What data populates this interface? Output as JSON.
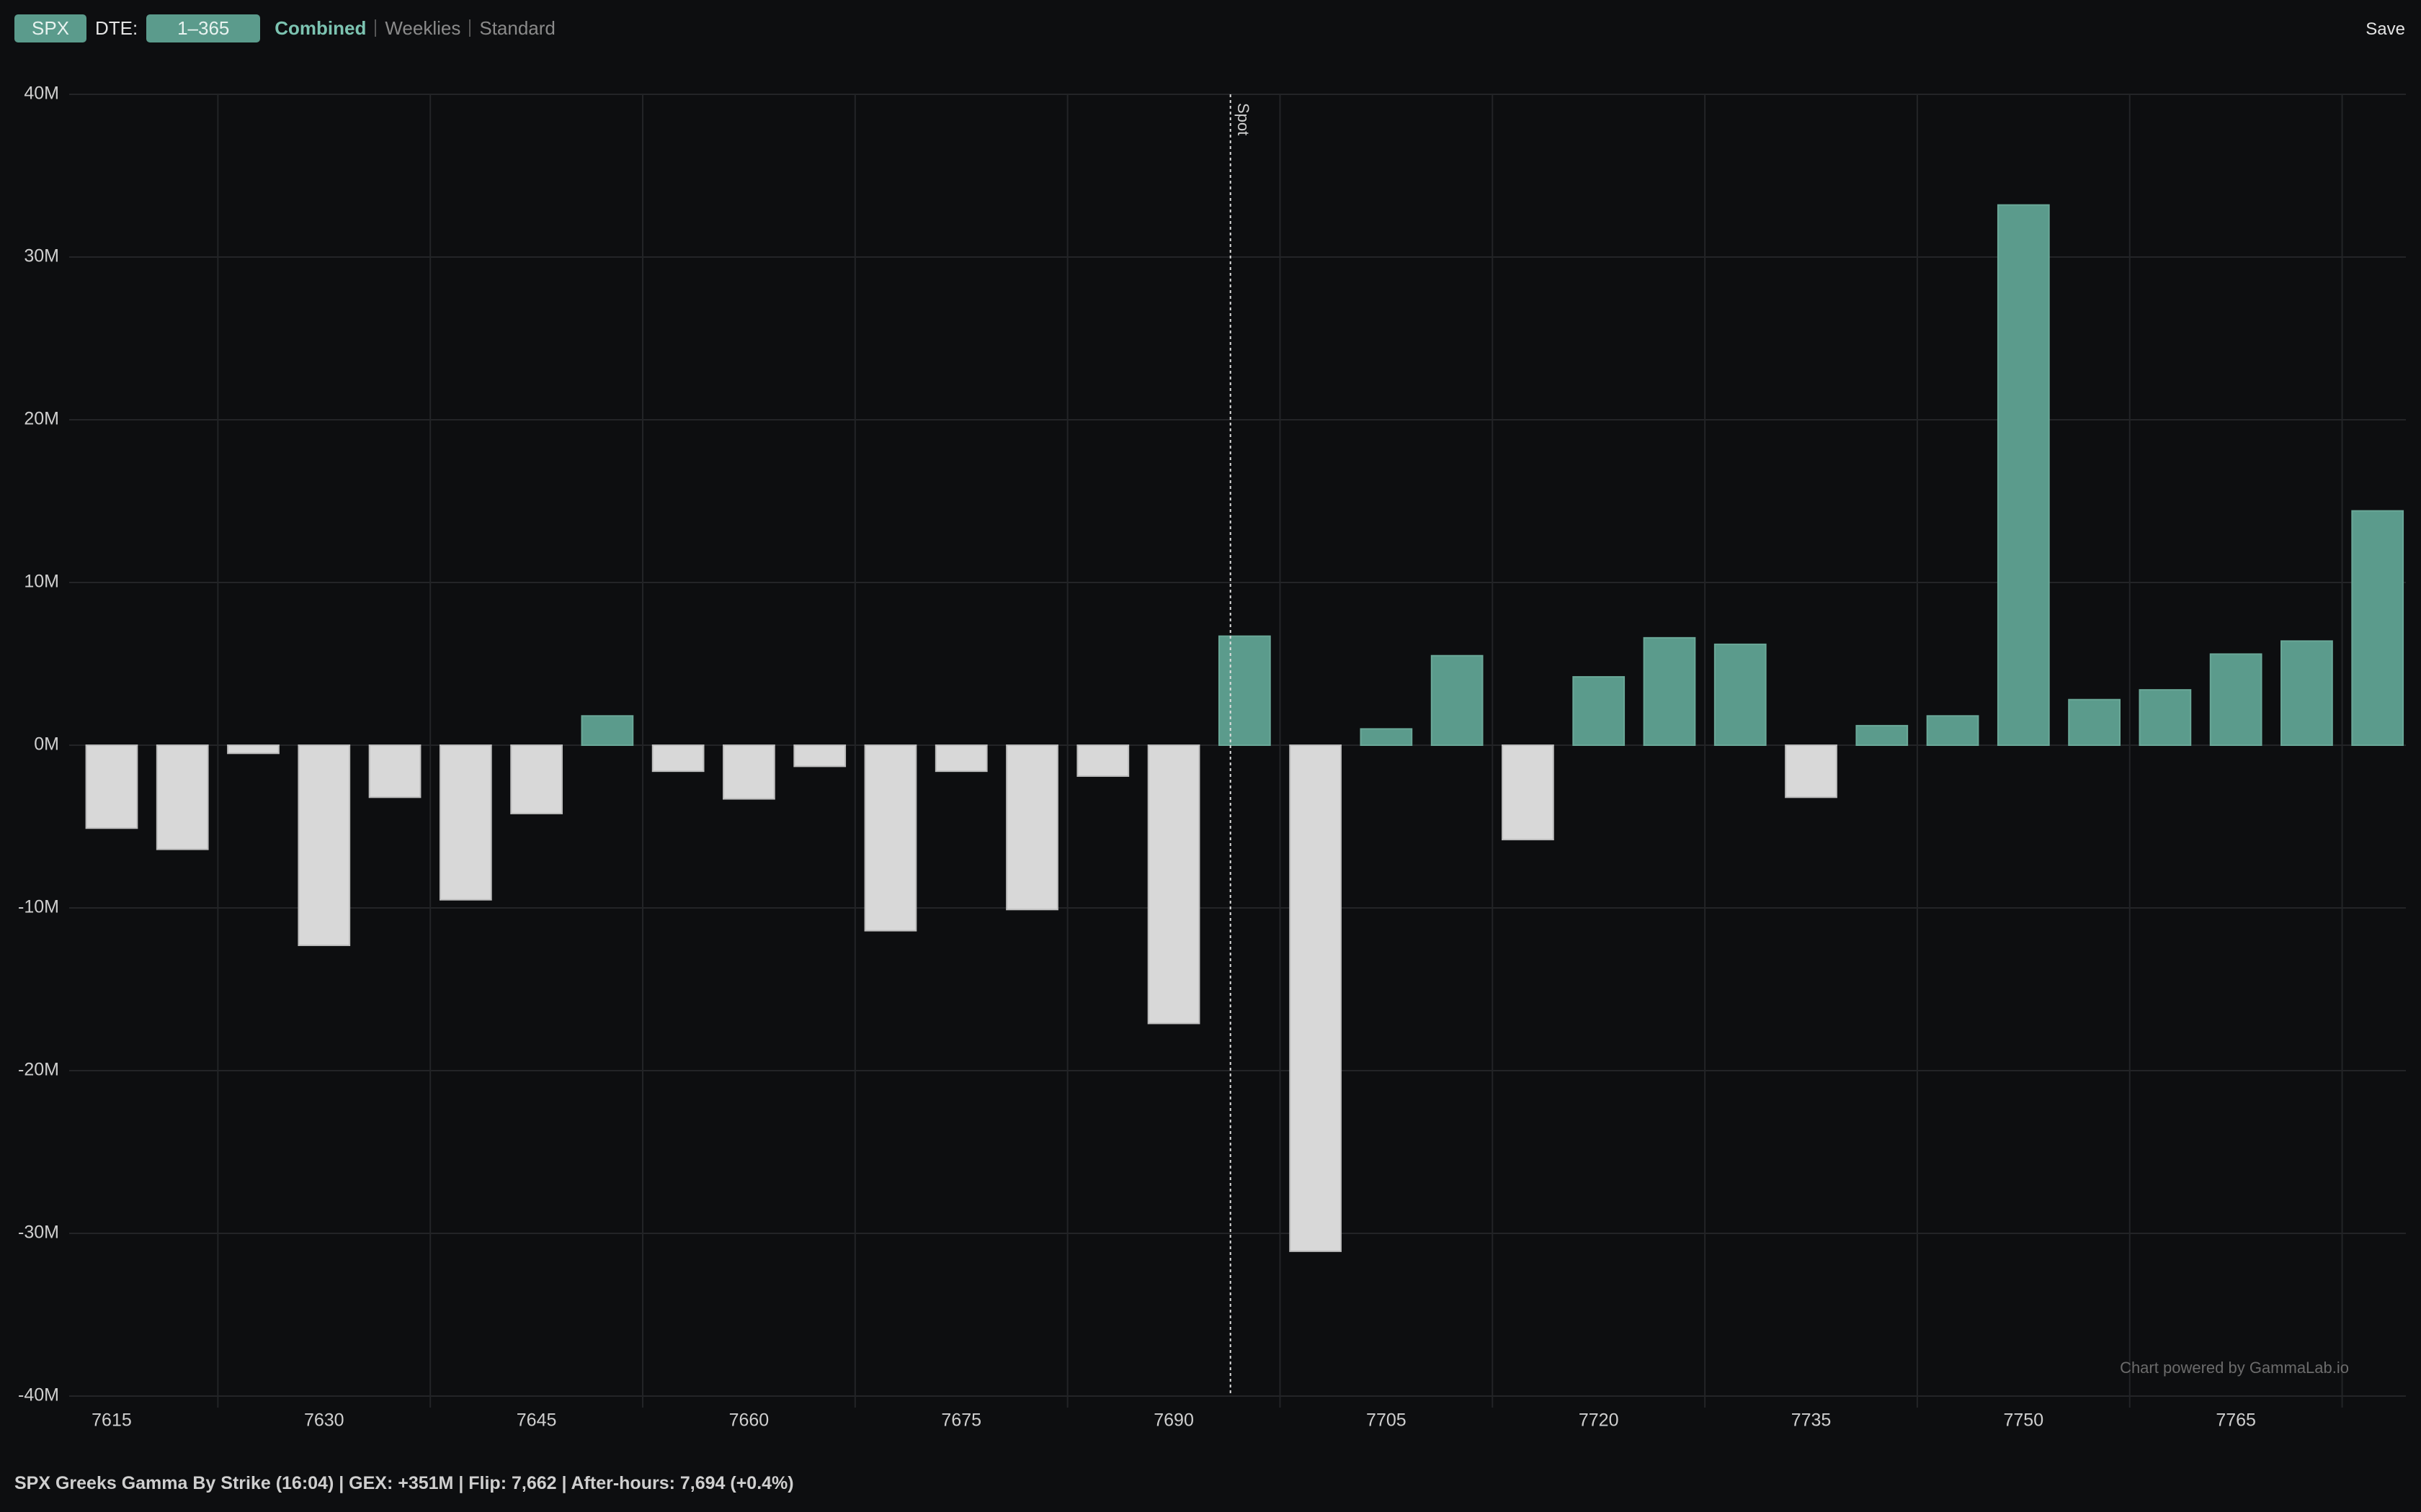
{
  "toolbar": {
    "symbol": "SPX",
    "dte_label": "DTE:",
    "dte_value": "1–365",
    "tabs": [
      "Combined",
      "Weeklies",
      "Standard"
    ],
    "active_tab": 0,
    "save": "Save"
  },
  "chart_data": {
    "type": "bar",
    "x": [
      7615,
      7620,
      7625,
      7630,
      7635,
      7640,
      7645,
      7650,
      7655,
      7660,
      7665,
      7670,
      7675,
      7680,
      7685,
      7690,
      7695,
      7700,
      7705,
      7710,
      7715,
      7720,
      7725,
      7730,
      7735,
      7740,
      7745,
      7750,
      7755,
      7760,
      7765,
      7770,
      7775
    ],
    "values": [
      -5.1,
      -6.4,
      -0.5,
      -12.3,
      -3.2,
      -9.5,
      -4.2,
      1.8,
      -1.6,
      -3.3,
      -1.3,
      -11.4,
      -1.6,
      -10.1,
      -1.9,
      -17.1,
      6.7,
      -31.1,
      1.0,
      5.5,
      -5.8,
      4.2,
      6.6,
      6.2,
      -3.2,
      1.2,
      1.8,
      33.2,
      2.8,
      3.4,
      5.6,
      6.4,
      14.4
    ],
    "positive_color": "#5b9b8c",
    "negative_color": "#d8d8d8",
    "xlim": [
      7612,
      7777
    ],
    "xticks": [
      7615,
      7630,
      7645,
      7660,
      7675,
      7690,
      7705,
      7720,
      7735,
      7750,
      7765
    ],
    "ylim": [
      -40,
      40
    ],
    "yticks": [
      {
        "value": -40,
        "label": "-40M"
      },
      {
        "value": -30,
        "label": "-30M"
      },
      {
        "value": -20,
        "label": "-20M"
      },
      {
        "value": -10,
        "label": "-10M"
      },
      {
        "value": 0,
        "label": "0M"
      },
      {
        "value": 10,
        "label": "10M"
      },
      {
        "value": 20,
        "label": "20M"
      },
      {
        "value": 30,
        "label": "30M"
      },
      {
        "value": 40,
        "label": "40M"
      }
    ],
    "grid": true,
    "spot": {
      "value": 7694,
      "label": "Spot"
    },
    "watermark": "Chart powered by GammaLab.io"
  },
  "footer": "SPX Greeks Gamma By Strike (16:04) | GEX: +351M | Flip: 7,662 | After-hours: 7,694 (+0.4%)"
}
